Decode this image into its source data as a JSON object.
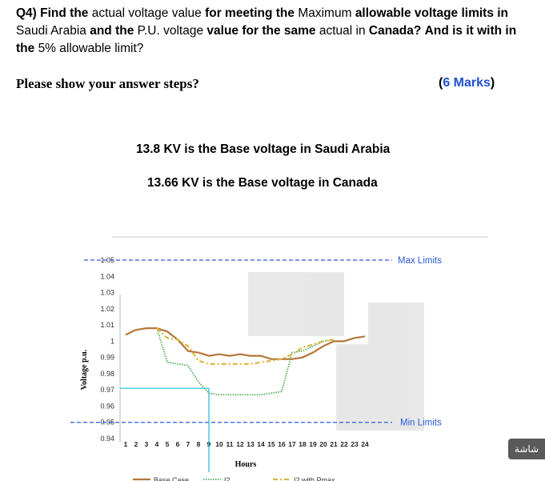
{
  "question": {
    "p1": "Q4) Find the",
    "p2": "actual voltage value",
    "p3": "for meeting the",
    "p4": "Maximum",
    "p5": "allowable voltage limits in",
    "p6": "Saudi Arabia",
    "p7": "and the",
    "p8": "P.U. voltage",
    "p9": "value for the same",
    "p10": "actual in",
    "p11": "Canada?",
    "p12": "And is it with in the",
    "p13": "5% allowable limit?"
  },
  "steps": "Please show your answer steps?",
  "marks": {
    "open": "(",
    "value": "6 Marks",
    "close": ")"
  },
  "base_saudi": "13.8 KV is the Base voltage in Saudi Arabia",
  "base_canada": "13.66 KV is the Base voltage in Canada",
  "badge": "شاشة",
  "chart_data": {
    "type": "line",
    "xlabel": "Hours",
    "ylabel": "Voltage p.u.",
    "x": [
      1,
      2,
      3,
      4,
      5,
      6,
      7,
      8,
      9,
      10,
      11,
      12,
      13,
      14,
      15,
      16,
      17,
      18,
      19,
      20,
      21,
      22,
      23,
      24
    ],
    "ylim": [
      0.94,
      1.05
    ],
    "yticks": [
      "0.94",
      "0.95",
      "0.96",
      "0.97",
      "0.98",
      "0.99",
      "1",
      "1.01",
      "1.02",
      "1.03",
      "1.04",
      "1.05"
    ],
    "max_limit_label": "Max Limits",
    "min_limit_label": "Min Limits",
    "max_limit": 1.05,
    "min_limit": 0.95,
    "marker": {
      "hour": 9,
      "value": 0.971
    },
    "series": [
      {
        "name": "Base Case",
        "color": "#b5763a",
        "values": [
          1.004,
          1.007,
          1.008,
          1.008,
          1.006,
          1.001,
          0.994,
          0.993,
          0.991,
          0.992,
          0.991,
          0.992,
          0.991,
          0.991,
          0.989,
          0.989,
          0.989,
          0.99,
          0.993,
          0.997,
          1.0,
          1.0,
          1.002,
          1.003
        ]
      },
      {
        "name": "I2",
        "color": "#4fae56",
        "values": [
          null,
          null,
          null,
          1.008,
          0.987,
          0.986,
          0.985,
          0.975,
          0.968,
          0.967,
          0.967,
          0.967,
          0.967,
          0.967,
          0.968,
          0.969,
          0.993,
          0.994,
          0.997,
          1.0,
          1.001,
          null,
          null,
          null
        ]
      },
      {
        "name": "I2 with Pmax",
        "color": "#d9b640",
        "values": [
          null,
          null,
          null,
          1.008,
          1.002,
          1.001,
          0.997,
          0.988,
          0.986,
          0.986,
          0.986,
          0.986,
          0.986,
          0.987,
          0.988,
          0.989,
          0.992,
          0.996,
          0.998,
          1.0,
          1.001,
          null,
          null,
          null
        ]
      }
    ]
  }
}
